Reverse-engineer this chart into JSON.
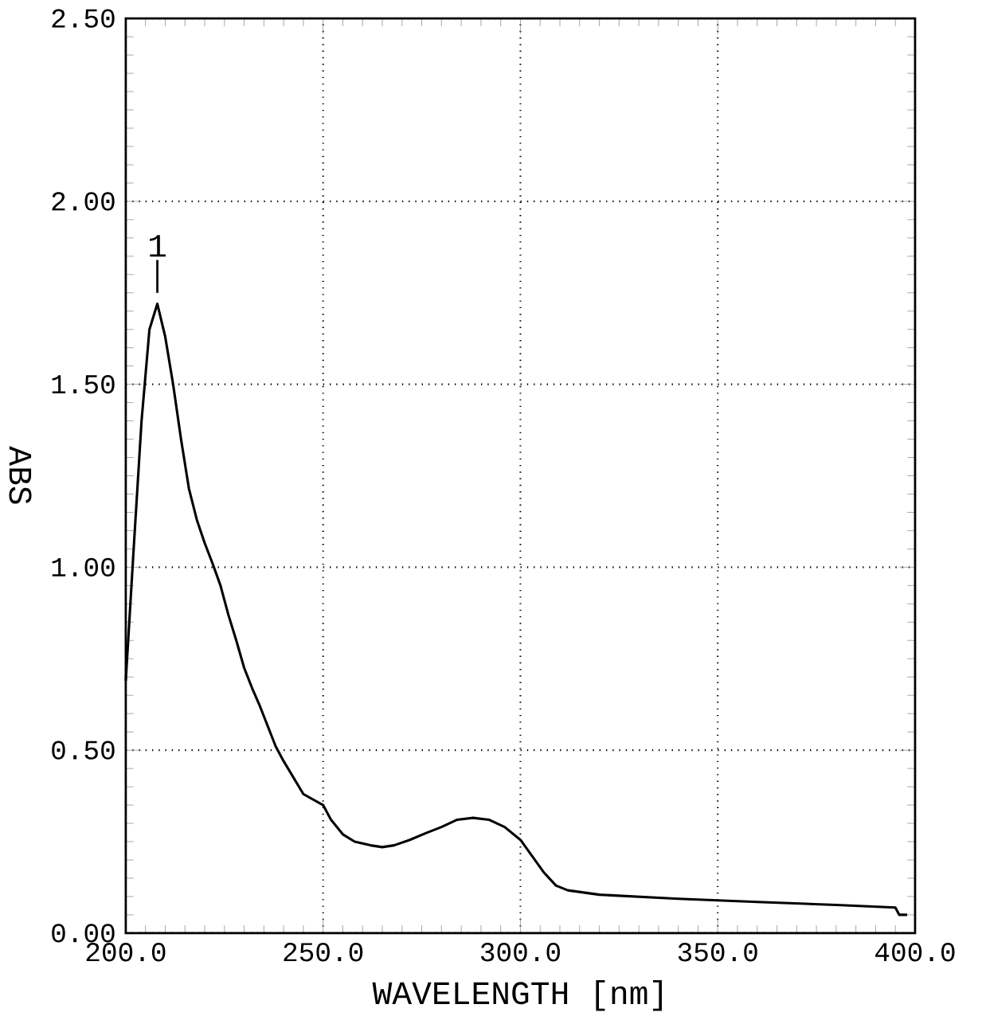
{
  "chart_data": {
    "type": "line",
    "xlabel": "WAVELENGTH [nm]",
    "ylabel": "ABS",
    "x": [
      200,
      202,
      204,
      206,
      208,
      210,
      212,
      214,
      216,
      218,
      220,
      222,
      224,
      226,
      228,
      230,
      232,
      234,
      236,
      238,
      240,
      245,
      250,
      252,
      255,
      258,
      262,
      265,
      268,
      272,
      276,
      280,
      284,
      288,
      292,
      296,
      300,
      303,
      306,
      309,
      312,
      320,
      340,
      360,
      380,
      395,
      396,
      398
    ],
    "series": [
      {
        "color": "#000000",
        "values": [
          0.69,
          1.05,
          1.4,
          1.65,
          1.72,
          1.63,
          1.5,
          1.35,
          1.215,
          1.13,
          1.066,
          1.01,
          0.95,
          0.87,
          0.8,
          0.725,
          0.67,
          0.62,
          0.565,
          0.51,
          0.47,
          0.38,
          0.35,
          0.31,
          0.27,
          0.25,
          0.24,
          0.235,
          0.24,
          0.255,
          0.273,
          0.29,
          0.31,
          0.315,
          0.31,
          0.29,
          0.255,
          0.21,
          0.165,
          0.13,
          0.117,
          0.105,
          0.094,
          0.085,
          0.077,
          0.07,
          0.05,
          0.05
        ]
      }
    ],
    "xlim": [
      200,
      400
    ],
    "ylim": [
      0,
      2.5
    ],
    "xticks": [
      {
        "value": 200,
        "label": "200.0"
      },
      {
        "value": 250,
        "label": "250.0"
      },
      {
        "value": 300,
        "label": "300.0"
      },
      {
        "value": 350,
        "label": "350.0"
      },
      {
        "value": 400,
        "label": "400.0"
      }
    ],
    "yticks": [
      {
        "value": 0,
        "label": "0.00"
      },
      {
        "value": 0.5,
        "label": "0.50"
      },
      {
        "value": 1,
        "label": "1.00"
      },
      {
        "value": 1.5,
        "label": "1.50"
      },
      {
        "value": 2,
        "label": "2.00"
      },
      {
        "value": 2.5,
        "label": "2.50"
      }
    ],
    "grid": true,
    "marker": "none",
    "line_style": "solid",
    "annotations": [
      {
        "text": "1",
        "x": 208,
        "y": 1.72
      }
    ]
  }
}
